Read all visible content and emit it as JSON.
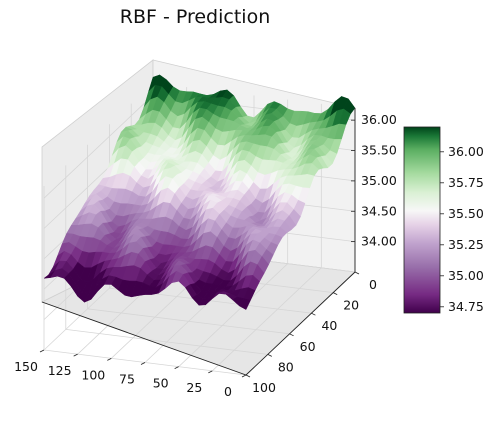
{
  "chart_data": {
    "type": "surface3d",
    "title": "RBF - Prediction",
    "xlabel": "",
    "ylabel": "",
    "zlabel": "",
    "x_ticks": [
      0,
      25,
      50,
      75,
      100,
      125,
      150
    ],
    "x_range": [
      0,
      150
    ],
    "y_ticks": [
      0,
      20,
      40,
      60,
      80,
      100
    ],
    "y_range": [
      0,
      100
    ],
    "z_ticks": [
      "34.00",
      "34.50",
      "35.00",
      "35.50",
      "36.00"
    ],
    "z_range": [
      33.5,
      36.2
    ],
    "colorbar": {
      "colormap": "PRGn",
      "ticks": [
        "34.75",
        "35.00",
        "35.25",
        "35.50",
        "35.75",
        "36.00"
      ],
      "range": [
        34.7,
        36.2
      ]
    },
    "surface_trend": "Prediction rises from about 34.7 near y=100 to about 36.2 near y=0, with ripples across x"
  }
}
